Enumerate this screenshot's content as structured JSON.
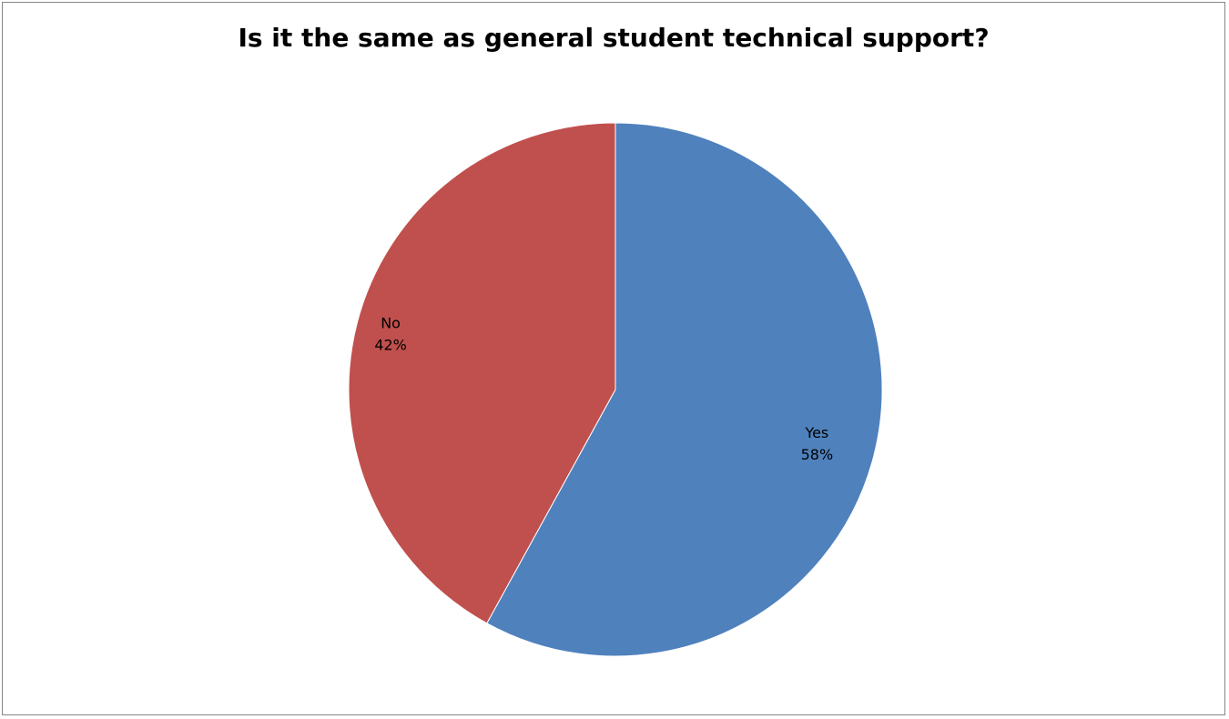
{
  "chart_data": {
    "type": "pie",
    "title": "Is it the same as general student technical support?",
    "slices": [
      {
        "label": "Yes",
        "value": 58,
        "value_label": "58%",
        "color": "#4f81bd"
      },
      {
        "label": "No",
        "value": 42,
        "value_label": "42%",
        "color": "#c0504d"
      }
    ],
    "start_angle": "top",
    "direction": "clockwise",
    "data_labels": "inside"
  }
}
